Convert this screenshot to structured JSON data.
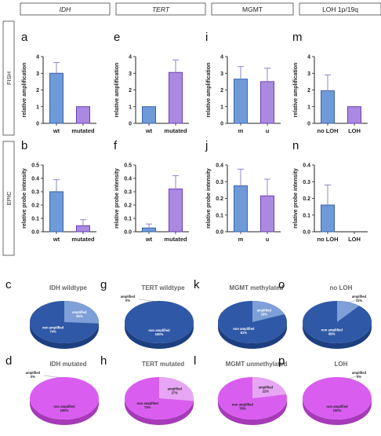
{
  "columns": [
    {
      "label": "IDH",
      "italic": true
    },
    {
      "label": "TERT",
      "italic": true
    },
    {
      "label": "MGMT",
      "italic": false
    },
    {
      "label": "LOH 1p/19q",
      "italic": false
    }
  ],
  "row_labels": {
    "fish": "FISH",
    "epic": "EPIC"
  },
  "colors": {
    "blue": "#6f9ad8",
    "blue_edge": "#3a63a8",
    "purple": "#a98ae0",
    "purple_edge": "#6a3fb5",
    "pie_blue": "#2f58a6",
    "pie_blue_light": "#7e9fd7",
    "pie_blue_dark": "#1d3f80",
    "pie_magenta": "#d95ef0",
    "pie_magenta_light": "#e7a6f3",
    "pie_magenta_dark": "#a63ab8",
    "error": "#8888cc"
  },
  "chart_data": [
    {
      "type": "bar",
      "letter": "a",
      "ylabel": "relative amplification",
      "ylim": [
        0,
        4
      ],
      "yticks": [
        "0",
        "1",
        "2",
        "3",
        "4"
      ],
      "categories": [
        "wt",
        "mutated"
      ],
      "values": [
        3.0,
        1.0
      ],
      "errors": [
        0.65,
        0
      ],
      "colors": [
        "blue",
        "purple"
      ]
    },
    {
      "type": "bar",
      "letter": "e",
      "ylabel": "relative amplification",
      "ylim": [
        0,
        4
      ],
      "yticks": [
        "0",
        "1",
        "2",
        "3",
        "4"
      ],
      "categories": [
        "wt",
        "mutated"
      ],
      "values": [
        1.0,
        3.05
      ],
      "errors": [
        0,
        0.75
      ],
      "colors": [
        "blue",
        "purple"
      ]
    },
    {
      "type": "bar",
      "letter": "i",
      "ylabel": "relative amplification",
      "ylim": [
        0,
        4
      ],
      "yticks": [
        "0",
        "1",
        "2",
        "3",
        "4"
      ],
      "categories": [
        "m",
        "u"
      ],
      "values": [
        2.65,
        2.5
      ],
      "errors": [
        0.75,
        0.8
      ],
      "colors": [
        "blue",
        "purple"
      ]
    },
    {
      "type": "bar",
      "letter": "m",
      "ylabel": "relative amplification",
      "ylim": [
        0,
        4
      ],
      "yticks": [
        "0",
        "1",
        "2",
        "3",
        "4"
      ],
      "categories": [
        "no LOH",
        "LOH"
      ],
      "values": [
        1.95,
        1.0
      ],
      "errors": [
        0.95,
        0
      ],
      "colors": [
        "blue",
        "purple"
      ]
    },
    {
      "type": "bar",
      "letter": "b",
      "ylabel": "relative probe intensity",
      "ylim": [
        0,
        0.5
      ],
      "yticks": [
        "0.0",
        "0.1",
        "0.2",
        "0.3",
        "0.4",
        "0.5"
      ],
      "categories": [
        "wt",
        "mutated"
      ],
      "values": [
        0.3,
        0.045
      ],
      "errors": [
        0.09,
        0.045
      ],
      "colors": [
        "blue",
        "purple"
      ]
    },
    {
      "type": "bar",
      "letter": "f",
      "ylabel": "relative probe intensity",
      "ylim": [
        0,
        0.5
      ],
      "yticks": [
        "0.0",
        "0.1",
        "0.2",
        "0.3",
        "0.4",
        "0.5"
      ],
      "categories": [
        "wt",
        "mutated"
      ],
      "values": [
        0.028,
        0.32
      ],
      "errors": [
        0.03,
        0.1
      ],
      "colors": [
        "blue",
        "purple"
      ]
    },
    {
      "type": "bar",
      "letter": "j",
      "ylabel": "relative probe intensity",
      "ylim": [
        0,
        0.4
      ],
      "yticks": [
        "0.0",
        "0.1",
        "0.2",
        "0.3",
        "0.4"
      ],
      "categories": [
        "m",
        "u"
      ],
      "values": [
        0.275,
        0.215
      ],
      "errors": [
        0.1,
        0.1
      ],
      "colors": [
        "blue",
        "purple"
      ]
    },
    {
      "type": "bar",
      "letter": "n",
      "ylabel": "relative probe intensity",
      "ylim": [
        0,
        0.4
      ],
      "yticks": [
        "0.0",
        "0.1",
        "0.2",
        "0.3",
        "0.4"
      ],
      "categories": [
        "no LOH",
        "LOH"
      ],
      "values": [
        0.16,
        0.0
      ],
      "errors": [
        0.12,
        0
      ],
      "colors": [
        "blue",
        "purple"
      ]
    },
    {
      "type": "pie",
      "letter": "c",
      "title": "IDH wildtype",
      "palette": "blue",
      "slices": [
        {
          "label": "amplified",
          "pct": "26%",
          "value": 26
        },
        {
          "label": "non amplified",
          "pct": "74%",
          "value": 74
        }
      ],
      "label_style": [
        "inside",
        "inside"
      ]
    },
    {
      "type": "pie",
      "letter": "g",
      "title": "TERT wildtype",
      "palette": "blue",
      "slices": [
        {
          "label": "amplified",
          "pct": "0%",
          "value": 0
        },
        {
          "label": "non amplified",
          "pct": "100%",
          "value": 100
        }
      ],
      "label_style": [
        "outside",
        "inside"
      ]
    },
    {
      "type": "pie",
      "letter": "k",
      "title": "MGMT methylated",
      "palette": "blue",
      "slices": [
        {
          "label": "amplified",
          "pct": "19%",
          "value": 19
        },
        {
          "label": "non amplified",
          "pct": "81%",
          "value": 81
        }
      ],
      "label_style": [
        "inside",
        "inside"
      ]
    },
    {
      "type": "pie",
      "letter": "o",
      "title": "no LOH",
      "palette": "blue",
      "slices": [
        {
          "label": "amplified",
          "pct": "11%",
          "value": 11
        },
        {
          "label": "non amplified",
          "pct": "89%",
          "value": 89
        }
      ],
      "label_style": [
        "outside",
        "inside"
      ]
    },
    {
      "type": "pie",
      "letter": "d",
      "title": "IDH mutated",
      "palette": "magenta",
      "slices": [
        {
          "label": "amplified",
          "pct": "0%",
          "value": 0
        },
        {
          "label": "non amplified",
          "pct": "100%",
          "value": 100
        }
      ],
      "label_style": [
        "outside",
        "inside"
      ]
    },
    {
      "type": "pie",
      "letter": "h",
      "title": "TERT mutated",
      "palette": "magenta",
      "slices": [
        {
          "label": "amplified",
          "pct": "27%",
          "value": 27
        },
        {
          "label": "non amplified",
          "pct": "73%",
          "value": 73
        }
      ],
      "label_style": [
        "inside",
        "inside"
      ]
    },
    {
      "type": "pie",
      "letter": "l",
      "title": "MGMT unmethylated",
      "palette": "magenta",
      "slices": [
        {
          "label": "amplified",
          "pct": "22%",
          "value": 22
        },
        {
          "label": "non amplified",
          "pct": "78%",
          "value": 78
        }
      ],
      "label_style": [
        "inside",
        "inside"
      ]
    },
    {
      "type": "pie",
      "letter": "p",
      "title": "LOH",
      "palette": "magenta",
      "slices": [
        {
          "label": "amplified",
          "pct": "0%",
          "value": 0
        },
        {
          "label": "non amplified",
          "pct": "100%",
          "value": 100
        }
      ],
      "label_style": [
        "outside",
        "inside"
      ]
    }
  ]
}
